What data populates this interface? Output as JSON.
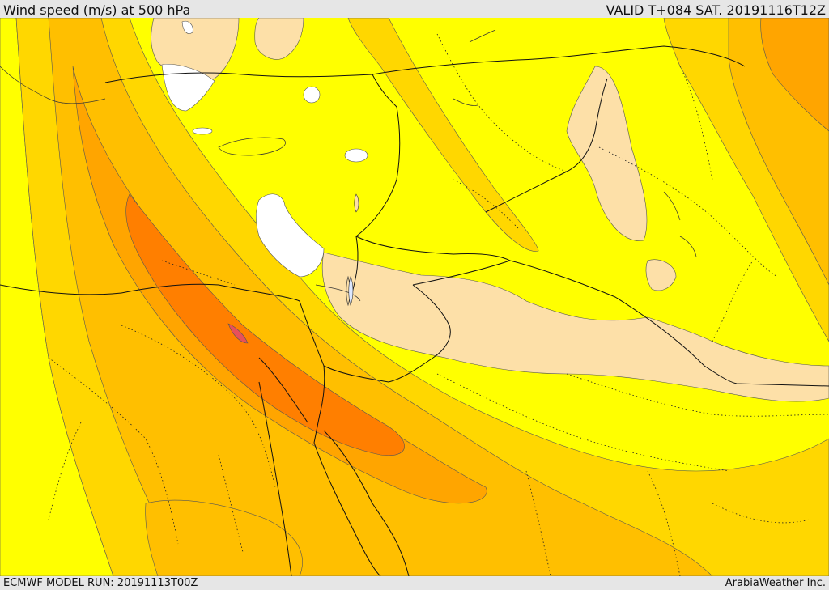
{
  "header": {
    "title": "Wind speed (m/s) at 500 hPa",
    "valid_time": "VALID T+084 SAT. 20191116T12Z"
  },
  "footer": {
    "model_run": "ECMWF MODEL RUN: 20191113T00Z",
    "credit": "ArabiaWeather Inc."
  },
  "colors": {
    "background_yellow": "#ffff00",
    "light_peach": "#fde0a8",
    "gold": "#ffd700",
    "amber": "#ffbf00",
    "dark_amber": "#ffa500",
    "orange": "#ff8c00",
    "deep_orange": "#ff7400",
    "core_red": "#e8505a",
    "white_no_data": "#ffffff",
    "water": "#dde8ff"
  }
}
